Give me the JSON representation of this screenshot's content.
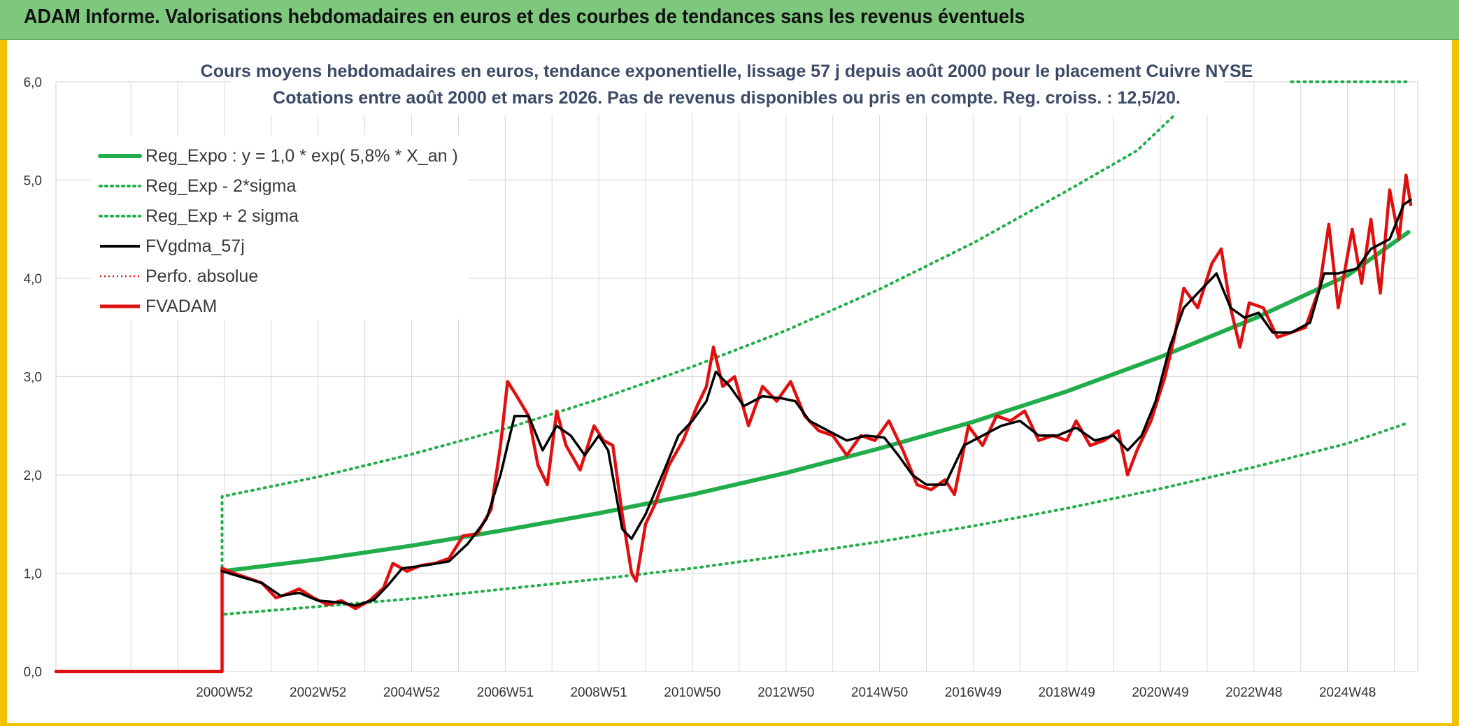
{
  "header": {
    "title": "ADAM Informe. Valorisations hebdomadaires en euros et des courbes de tendances sans les revenus éventuels"
  },
  "chart_data": {
    "type": "line",
    "title_line1": "Cours moyens hebdomadaires en euros, tendance exponentielle, lissage 57 j depuis août 2000 pour le placement Cuivre NYSE",
    "title_line2": "Cotations entre août 2000 et mars 2026. Pas de revenus disponibles ou pris en compte. Reg. croiss. : 12,5/20.",
    "ylim": [
      0,
      6
    ],
    "y_ticks": [
      "0,0",
      "1,0",
      "2,0",
      "3,0",
      "4,0",
      "5,0",
      "6,0"
    ],
    "x_range": [
      1997.1,
      2026.2
    ],
    "x_ticks": [
      {
        "label": "2000W52",
        "t": 2000.7
      },
      {
        "label": "2002W52",
        "t": 2002.7
      },
      {
        "label": "2004W52",
        "t": 2004.7
      },
      {
        "label": "2006W51",
        "t": 2006.7
      },
      {
        "label": "2008W51",
        "t": 2008.7
      },
      {
        "label": "2010W50",
        "t": 2010.7
      },
      {
        "label": "2012W50",
        "t": 2012.7
      },
      {
        "label": "2014W50",
        "t": 2014.7
      },
      {
        "label": "2016W49",
        "t": 2016.7
      },
      {
        "label": "2018W49",
        "t": 2018.7
      },
      {
        "label": "2020W49",
        "t": 2020.7
      },
      {
        "label": "2022W48",
        "t": 2022.7
      },
      {
        "label": "2024W48",
        "t": 2024.7
      }
    ],
    "grid": true,
    "legend_position": "top-left",
    "colors": {
      "reg_expo": "#21ad4a",
      "sigma": "#21ad4a",
      "fvgdma": "#000000",
      "perfo": "#e01010",
      "fvadam": "#e01010",
      "grid": "#d9d9d9"
    },
    "series": [
      {
        "name": "Reg_Expo : y = 1,0 * exp( 5,8% *  X_an )",
        "style": "solid-thick",
        "points": [
          [
            2000.65,
            1.02
          ],
          [
            2002.7,
            1.14
          ],
          [
            2004.7,
            1.28
          ],
          [
            2006.7,
            1.44
          ],
          [
            2008.7,
            1.61
          ],
          [
            2010.7,
            1.8
          ],
          [
            2012.7,
            2.02
          ],
          [
            2014.7,
            2.27
          ],
          [
            2016.7,
            2.54
          ],
          [
            2018.7,
            2.85
          ],
          [
            2020.7,
            3.2
          ],
          [
            2022.7,
            3.59
          ],
          [
            2024.7,
            4.03
          ],
          [
            2026.0,
            4.47
          ]
        ]
      },
      {
        "name": "Reg_Exp - 2*sigma",
        "style": "dotted",
        "points": [
          [
            2000.65,
            1.0
          ],
          [
            2000.65,
            0.58
          ],
          [
            2002.7,
            0.66
          ],
          [
            2004.7,
            0.74
          ],
          [
            2006.7,
            0.84
          ],
          [
            2008.7,
            0.94
          ],
          [
            2010.7,
            1.05
          ],
          [
            2012.7,
            1.18
          ],
          [
            2014.7,
            1.32
          ],
          [
            2016.7,
            1.48
          ],
          [
            2018.7,
            1.66
          ],
          [
            2020.7,
            1.86
          ],
          [
            2022.7,
            2.08
          ],
          [
            2024.7,
            2.32
          ],
          [
            2026.0,
            2.53
          ]
        ]
      },
      {
        "name": "Reg_Exp + 2 sigma",
        "style": "dotted",
        "points": [
          [
            2000.65,
            1.0
          ],
          [
            2000.65,
            1.78
          ],
          [
            2002.7,
            1.98
          ],
          [
            2004.7,
            2.21
          ],
          [
            2006.7,
            2.47
          ],
          [
            2008.7,
            2.77
          ],
          [
            2010.7,
            3.1
          ],
          [
            2012.7,
            3.47
          ],
          [
            2014.7,
            3.89
          ],
          [
            2016.7,
            4.36
          ],
          [
            2018.7,
            4.89
          ],
          [
            2020.2,
            5.3
          ],
          [
            2021.0,
            5.66
          ]
        ]
      },
      {
        "name": "FVgdma_57j",
        "style": "solid",
        "points": [
          [
            2000.65,
            1.02
          ],
          [
            2001.0,
            0.97
          ],
          [
            2001.5,
            0.9
          ],
          [
            2001.9,
            0.77
          ],
          [
            2002.3,
            0.8
          ],
          [
            2002.7,
            0.72
          ],
          [
            2003.2,
            0.7
          ],
          [
            2003.5,
            0.67
          ],
          [
            2003.9,
            0.73
          ],
          [
            2004.2,
            0.88
          ],
          [
            2004.5,
            1.05
          ],
          [
            2005.0,
            1.08
          ],
          [
            2005.5,
            1.12
          ],
          [
            2005.9,
            1.3
          ],
          [
            2006.3,
            1.55
          ],
          [
            2006.6,
            2.0
          ],
          [
            2006.9,
            2.6
          ],
          [
            2007.2,
            2.6
          ],
          [
            2007.5,
            2.25
          ],
          [
            2007.8,
            2.5
          ],
          [
            2008.1,
            2.4
          ],
          [
            2008.4,
            2.2
          ],
          [
            2008.7,
            2.4
          ],
          [
            2008.9,
            2.25
          ],
          [
            2009.2,
            1.45
          ],
          [
            2009.4,
            1.35
          ],
          [
            2009.7,
            1.6
          ],
          [
            2010.1,
            2.05
          ],
          [
            2010.4,
            2.4
          ],
          [
            2010.7,
            2.55
          ],
          [
            2011.0,
            2.75
          ],
          [
            2011.2,
            3.05
          ],
          [
            2011.5,
            2.9
          ],
          [
            2011.8,
            2.7
          ],
          [
            2012.2,
            2.8
          ],
          [
            2012.6,
            2.78
          ],
          [
            2012.9,
            2.75
          ],
          [
            2013.2,
            2.55
          ],
          [
            2013.6,
            2.45
          ],
          [
            2014.0,
            2.35
          ],
          [
            2014.4,
            2.4
          ],
          [
            2014.8,
            2.38
          ],
          [
            2015.1,
            2.2
          ],
          [
            2015.4,
            2.0
          ],
          [
            2015.7,
            1.9
          ],
          [
            2016.1,
            1.9
          ],
          [
            2016.5,
            2.3
          ],
          [
            2016.9,
            2.4
          ],
          [
            2017.3,
            2.5
          ],
          [
            2017.7,
            2.55
          ],
          [
            2018.1,
            2.4
          ],
          [
            2018.5,
            2.4
          ],
          [
            2018.9,
            2.48
          ],
          [
            2019.3,
            2.35
          ],
          [
            2019.7,
            2.4
          ],
          [
            2020.0,
            2.25
          ],
          [
            2020.3,
            2.4
          ],
          [
            2020.6,
            2.75
          ],
          [
            2020.9,
            3.3
          ],
          [
            2021.2,
            3.7
          ],
          [
            2021.5,
            3.85
          ],
          [
            2021.9,
            4.05
          ],
          [
            2022.2,
            3.7
          ],
          [
            2022.5,
            3.6
          ],
          [
            2022.8,
            3.65
          ],
          [
            2023.1,
            3.45
          ],
          [
            2023.5,
            3.45
          ],
          [
            2023.9,
            3.55
          ],
          [
            2024.2,
            4.05
          ],
          [
            2024.5,
            4.05
          ],
          [
            2024.9,
            4.1
          ],
          [
            2025.2,
            4.3
          ],
          [
            2025.6,
            4.4
          ],
          [
            2025.9,
            4.75
          ],
          [
            2026.05,
            4.8
          ]
        ]
      },
      {
        "name": "Perfo. absolue",
        "style": "dotted-red",
        "points": []
      },
      {
        "name": "FVADAM",
        "style": "solid-thick-red",
        "points": [
          [
            1997.1,
            0.0
          ],
          [
            2000.65,
            0.0
          ],
          [
            2000.65,
            1.05
          ],
          [
            2000.9,
            1.0
          ],
          [
            2001.2,
            0.95
          ],
          [
            2001.5,
            0.9
          ],
          [
            2001.8,
            0.75
          ],
          [
            2002.0,
            0.78
          ],
          [
            2002.3,
            0.84
          ],
          [
            2002.6,
            0.75
          ],
          [
            2002.9,
            0.68
          ],
          [
            2003.2,
            0.72
          ],
          [
            2003.5,
            0.64
          ],
          [
            2003.8,
            0.72
          ],
          [
            2004.1,
            0.85
          ],
          [
            2004.3,
            1.1
          ],
          [
            2004.6,
            1.02
          ],
          [
            2004.9,
            1.08
          ],
          [
            2005.2,
            1.1
          ],
          [
            2005.5,
            1.15
          ],
          [
            2005.8,
            1.38
          ],
          [
            2006.1,
            1.4
          ],
          [
            2006.4,
            1.65
          ],
          [
            2006.6,
            2.3
          ],
          [
            2006.75,
            2.95
          ],
          [
            2006.95,
            2.8
          ],
          [
            2007.2,
            2.6
          ],
          [
            2007.4,
            2.1
          ],
          [
            2007.6,
            1.9
          ],
          [
            2007.8,
            2.65
          ],
          [
            2008.0,
            2.3
          ],
          [
            2008.3,
            2.05
          ],
          [
            2008.6,
            2.5
          ],
          [
            2008.8,
            2.35
          ],
          [
            2009.0,
            2.3
          ],
          [
            2009.2,
            1.6
          ],
          [
            2009.4,
            1.0
          ],
          [
            2009.5,
            0.92
          ],
          [
            2009.7,
            1.5
          ],
          [
            2009.9,
            1.7
          ],
          [
            2010.2,
            2.1
          ],
          [
            2010.5,
            2.35
          ],
          [
            2010.8,
            2.7
          ],
          [
            2011.0,
            2.9
          ],
          [
            2011.15,
            3.3
          ],
          [
            2011.35,
            2.9
          ],
          [
            2011.6,
            3.0
          ],
          [
            2011.9,
            2.5
          ],
          [
            2012.2,
            2.9
          ],
          [
            2012.5,
            2.75
          ],
          [
            2012.8,
            2.95
          ],
          [
            2013.1,
            2.6
          ],
          [
            2013.4,
            2.45
          ],
          [
            2013.7,
            2.4
          ],
          [
            2014.0,
            2.2
          ],
          [
            2014.3,
            2.4
          ],
          [
            2014.6,
            2.35
          ],
          [
            2014.9,
            2.55
          ],
          [
            2015.2,
            2.25
          ],
          [
            2015.5,
            1.9
          ],
          [
            2015.8,
            1.85
          ],
          [
            2016.1,
            1.95
          ],
          [
            2016.3,
            1.8
          ],
          [
            2016.6,
            2.5
          ],
          [
            2016.9,
            2.3
          ],
          [
            2017.2,
            2.6
          ],
          [
            2017.5,
            2.55
          ],
          [
            2017.8,
            2.65
          ],
          [
            2018.1,
            2.35
          ],
          [
            2018.4,
            2.4
          ],
          [
            2018.7,
            2.35
          ],
          [
            2018.9,
            2.55
          ],
          [
            2019.2,
            2.3
          ],
          [
            2019.5,
            2.35
          ],
          [
            2019.8,
            2.45
          ],
          [
            2020.0,
            2.0
          ],
          [
            2020.2,
            2.25
          ],
          [
            2020.5,
            2.55
          ],
          [
            2020.8,
            3.0
          ],
          [
            2021.0,
            3.4
          ],
          [
            2021.2,
            3.9
          ],
          [
            2021.5,
            3.7
          ],
          [
            2021.8,
            4.15
          ],
          [
            2022.0,
            4.3
          ],
          [
            2022.2,
            3.7
          ],
          [
            2022.4,
            3.3
          ],
          [
            2022.6,
            3.75
          ],
          [
            2022.9,
            3.7
          ],
          [
            2023.2,
            3.4
          ],
          [
            2023.5,
            3.45
          ],
          [
            2023.8,
            3.5
          ],
          [
            2024.1,
            3.9
          ],
          [
            2024.3,
            4.55
          ],
          [
            2024.5,
            3.7
          ],
          [
            2024.8,
            4.5
          ],
          [
            2025.0,
            3.95
          ],
          [
            2025.2,
            4.6
          ],
          [
            2025.4,
            3.85
          ],
          [
            2025.6,
            4.9
          ],
          [
            2025.8,
            4.4
          ],
          [
            2025.95,
            5.05
          ],
          [
            2026.05,
            4.75
          ]
        ]
      }
    ]
  }
}
